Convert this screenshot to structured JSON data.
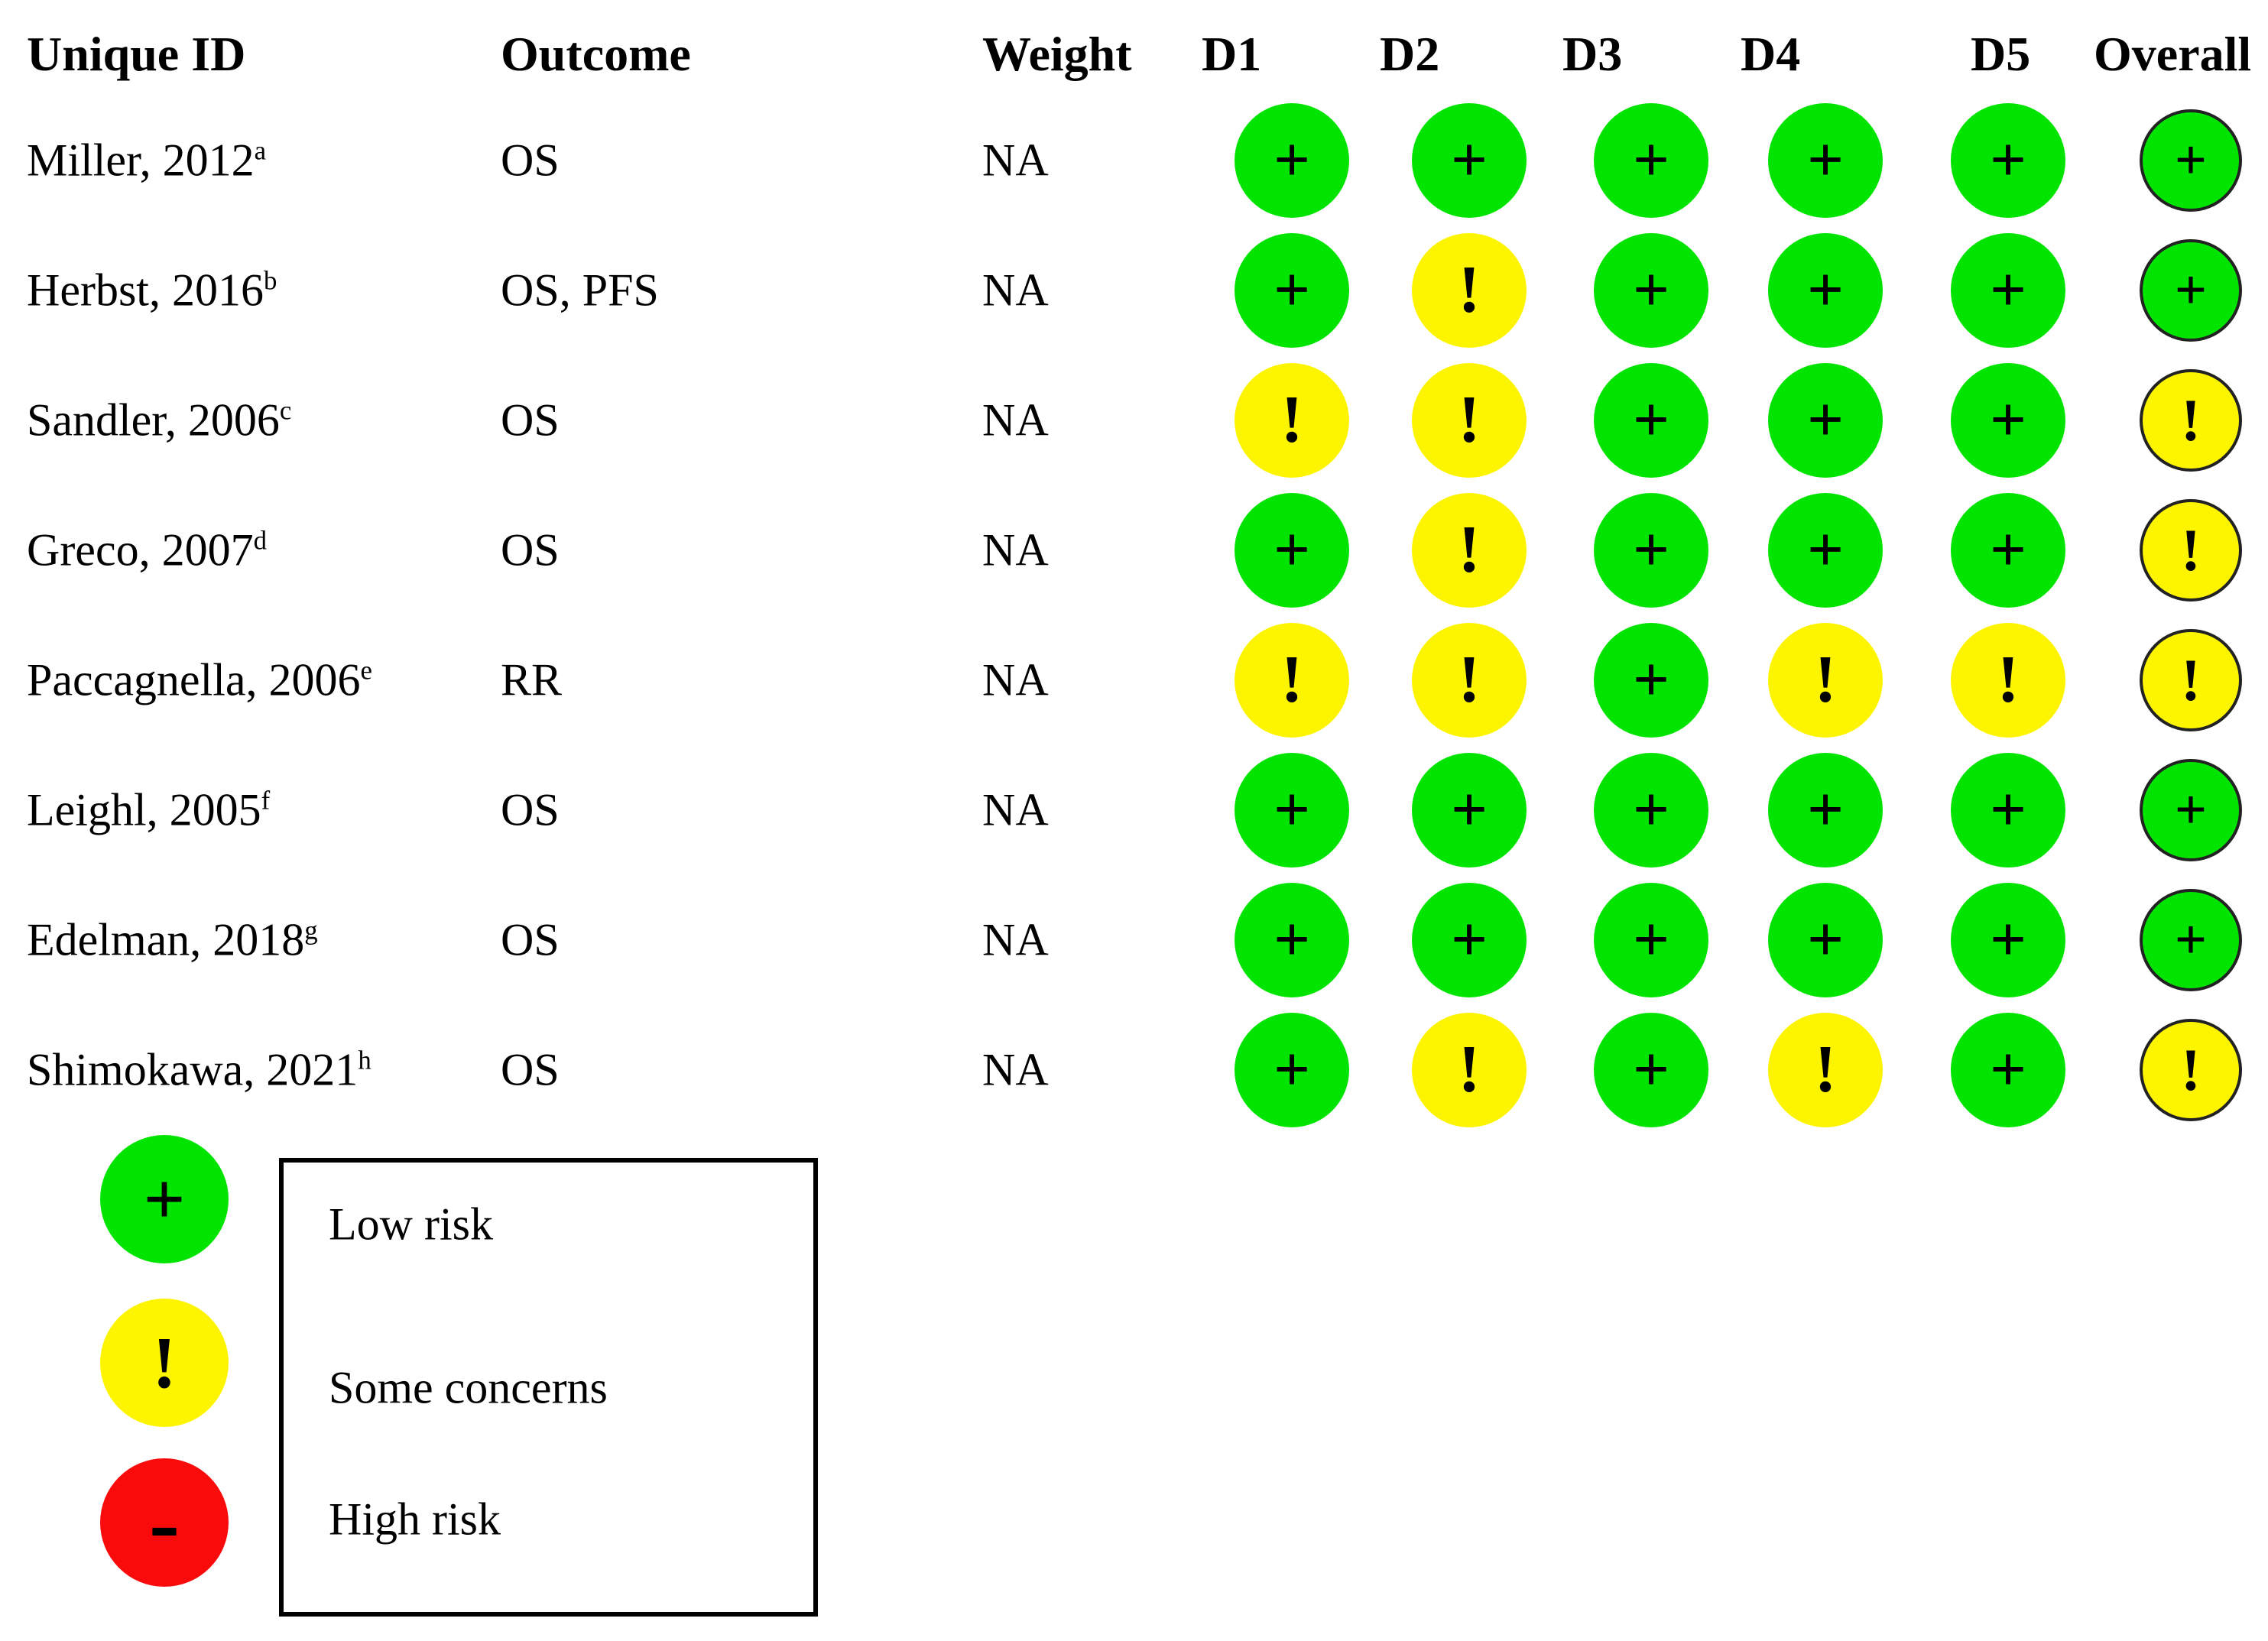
{
  "table": {
    "headers": {
      "unique_id": "Unique ID",
      "outcome": "Outcome",
      "weight": "Weight",
      "d1": "D1",
      "d2": "D2",
      "d3": "D3",
      "d4": "D4",
      "d5": "D5",
      "overall": "Overall"
    },
    "studies": [
      {
        "id": "Miller, 2012",
        "sup": "a",
        "outcome": "OS",
        "weight": "NA",
        "ratings": {
          "d1": "low",
          "d2": "low",
          "d3": "low",
          "d4": "low",
          "d5": "low",
          "overall": "low"
        }
      },
      {
        "id": "Herbst, 2016",
        "sup": "b",
        "outcome": "OS, PFS",
        "weight": "NA",
        "ratings": {
          "d1": "low",
          "d2": "some",
          "d3": "low",
          "d4": "low",
          "d5": "low",
          "overall": "low"
        }
      },
      {
        "id": "Sandler, 2006",
        "sup": "c",
        "outcome": "OS",
        "weight": "NA",
        "ratings": {
          "d1": "some",
          "d2": "some",
          "d3": "low",
          "d4": "low",
          "d5": "low",
          "overall": "some"
        }
      },
      {
        "id": "Greco, 2007",
        "sup": "d",
        "outcome": "OS",
        "weight": "NA",
        "ratings": {
          "d1": "low",
          "d2": "some",
          "d3": "low",
          "d4": "low",
          "d5": "low",
          "overall": "some"
        }
      },
      {
        "id": "Paccagnella, 2006",
        "sup": "e",
        "outcome": "RR",
        "weight": "NA",
        "ratings": {
          "d1": "some",
          "d2": "some",
          "d3": "low",
          "d4": "some",
          "d5": "some",
          "overall": "some"
        }
      },
      {
        "id": "Leighl, 2005",
        "sup": "f",
        "outcome": "OS",
        "weight": "NA",
        "ratings": {
          "d1": "low",
          "d2": "low",
          "d3": "low",
          "d4": "low",
          "d5": "low",
          "overall": "low"
        }
      },
      {
        "id": "Edelman, 2018",
        "sup": "g",
        "outcome": "OS",
        "weight": "NA",
        "ratings": {
          "d1": "low",
          "d2": "low",
          "d3": "low",
          "d4": "low",
          "d5": "low",
          "overall": "low"
        }
      },
      {
        "id": "Shimokawa, 2021",
        "sup": "h",
        "outcome": "OS",
        "weight": "NA",
        "ratings": {
          "d1": "low",
          "d2": "some",
          "d3": "low",
          "d4": "some",
          "d5": "low",
          "overall": "some"
        }
      }
    ]
  },
  "symbols": {
    "low": "+",
    "some": "!",
    "high": "-"
  },
  "colors": {
    "low": "#00e400",
    "some": "#fdf500",
    "high": "#fa0b0b"
  },
  "legend": {
    "items": [
      {
        "level": "low",
        "symbol": "+",
        "label": "Low risk"
      },
      {
        "level": "some",
        "symbol": "!",
        "label": "Some concerns"
      },
      {
        "level": "high",
        "symbol": "-",
        "label": "High risk"
      }
    ]
  },
  "chart_data": {
    "type": "table",
    "title": "Risk of bias traffic light plot",
    "columns": [
      "Unique ID",
      "Outcome",
      "Weight",
      "D1",
      "D2",
      "D3",
      "D4",
      "D5",
      "Overall"
    ],
    "rows": [
      [
        "Miller, 2012a",
        "OS",
        "NA",
        "Low risk",
        "Low risk",
        "Low risk",
        "Low risk",
        "Low risk",
        "Low risk"
      ],
      [
        "Herbst, 2016b",
        "OS, PFS",
        "NA",
        "Low risk",
        "Some concerns",
        "Low risk",
        "Low risk",
        "Low risk",
        "Low risk"
      ],
      [
        "Sandler, 2006c",
        "OS",
        "NA",
        "Some concerns",
        "Some concerns",
        "Low risk",
        "Low risk",
        "Low risk",
        "Some concerns"
      ],
      [
        "Greco, 2007d",
        "OS",
        "NA",
        "Low risk",
        "Some concerns",
        "Low risk",
        "Low risk",
        "Low risk",
        "Some concerns"
      ],
      [
        "Paccagnella, 2006e",
        "RR",
        "NA",
        "Some concerns",
        "Some concerns",
        "Low risk",
        "Some concerns",
        "Some concerns",
        "Some concerns"
      ],
      [
        "Leighl, 2005f",
        "OS",
        "NA",
        "Low risk",
        "Low risk",
        "Low risk",
        "Low risk",
        "Low risk",
        "Low risk"
      ],
      [
        "Edelman, 2018g",
        "OS",
        "NA",
        "Low risk",
        "Low risk",
        "Low risk",
        "Low risk",
        "Low risk",
        "Low risk"
      ],
      [
        "Shimokawa, 2021h",
        "OS",
        "NA",
        "Low risk",
        "Some concerns",
        "Low risk",
        "Some concerns",
        "Low risk",
        "Some concerns"
      ]
    ],
    "legend": {
      "Low risk": "green +",
      "Some concerns": "yellow !",
      "High risk": "red -"
    },
    "layout": {
      "grid": false,
      "legend_position": "bottom-left"
    }
  }
}
